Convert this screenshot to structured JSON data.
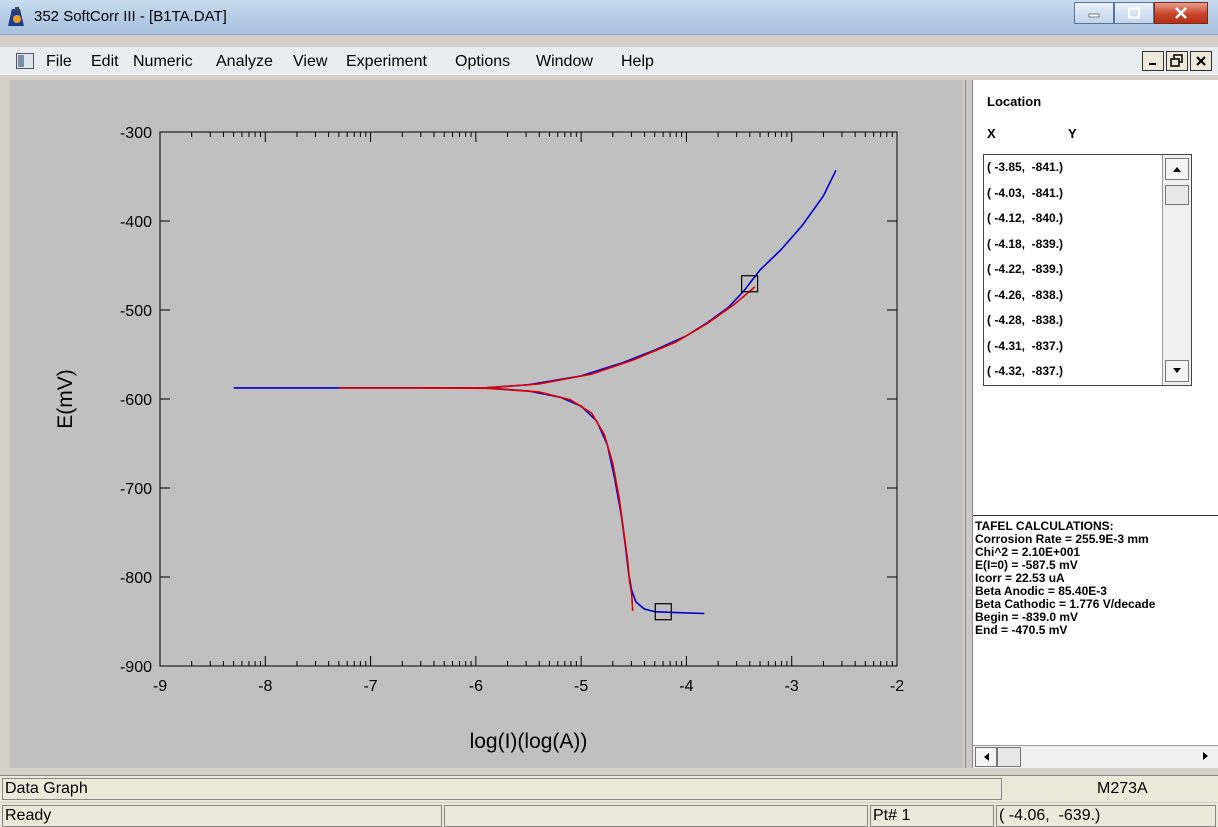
{
  "window": {
    "title": "352 SoftCorr III - [B1TA.DAT]"
  },
  "menu": {
    "items": [
      "File",
      "Edit",
      "Numeric",
      "Analyze",
      "View",
      "Experiment",
      "Options",
      "Window",
      "Help"
    ]
  },
  "location_panel": {
    "title": "Location",
    "x_header": "X",
    "y_header": "Y",
    "rows": [
      "( -3.85,  -841.)",
      "( -4.03,  -841.)",
      "( -4.12,  -840.)",
      "( -4.18,  -839.)",
      "( -4.22,  -839.)",
      "( -4.26,  -838.)",
      "( -4.28,  -838.)",
      "( -4.31,  -837.)",
      "( -4.32,  -837.)"
    ]
  },
  "tafel": {
    "lines": [
      "TAFEL CALCULATIONS:",
      "Corrosion Rate = 255.9E-3 mm",
      "Chi^2 =  2.10E+001",
      "E(I=0) = -587.5 mV",
      "Icorr = 22.53 uA",
      "Beta Anodic = 85.40E-3",
      "Beta Cathodic = 1.776 V/decade",
      "Begin = -839.0 mV",
      "End = -470.5 mV"
    ]
  },
  "status": {
    "graph_label": "Data Graph",
    "instrument": "M273A",
    "ready": "Ready",
    "point": "Pt# 1",
    "coords": "( -4.06,  -639.)"
  },
  "chart_data": {
    "type": "line",
    "xlabel": "log(I)(log(A))",
    "ylabel": "E(mV)",
    "xlim": [
      -9,
      -2
    ],
    "ylim": [
      -900,
      -300
    ],
    "x_ticks": [
      -9,
      -8,
      -7,
      -6,
      -5,
      -4,
      -3,
      -2
    ],
    "y_ticks": [
      -300,
      -400,
      -500,
      -600,
      -700,
      -800,
      -900
    ],
    "log_minor_ticks": true,
    "series": [
      {
        "color": "#0000cc",
        "points": [
          [
            -8.3,
            -587.5
          ],
          [
            -7.5,
            -587.5
          ],
          [
            -6.5,
            -587.5
          ],
          [
            -5.9,
            -587.3
          ],
          [
            -5.5,
            -584
          ],
          [
            -5.0,
            -574
          ],
          [
            -4.6,
            -559
          ],
          [
            -4.3,
            -545
          ],
          [
            -4.0,
            -529
          ],
          [
            -3.8,
            -514
          ],
          [
            -3.6,
            -497
          ],
          [
            -3.45,
            -478
          ],
          [
            -3.3,
            -455
          ],
          [
            -3.1,
            -432
          ],
          [
            -2.9,
            -405
          ],
          [
            -2.7,
            -372
          ],
          [
            -2.58,
            -343
          ]
        ]
      },
      {
        "color": "#0000cc",
        "points": [
          [
            -5.9,
            -587.5
          ],
          [
            -5.5,
            -591
          ],
          [
            -5.2,
            -598
          ],
          [
            -5.0,
            -608
          ],
          [
            -4.85,
            -625
          ],
          [
            -4.75,
            -652
          ],
          [
            -4.68,
            -690
          ],
          [
            -4.62,
            -730
          ],
          [
            -4.58,
            -765
          ],
          [
            -4.55,
            -795
          ],
          [
            -4.52,
            -815
          ],
          [
            -4.48,
            -828
          ],
          [
            -4.4,
            -836
          ],
          [
            -4.3,
            -839
          ],
          [
            -4.1,
            -840
          ],
          [
            -3.83,
            -841
          ]
        ]
      },
      {
        "color": "#dd0000",
        "points": [
          [
            -7.3,
            -587.5
          ],
          [
            -6.5,
            -587.5
          ],
          [
            -5.9,
            -587.5
          ],
          [
            -5.4,
            -583
          ],
          [
            -4.9,
            -572
          ],
          [
            -4.5,
            -556
          ],
          [
            -4.1,
            -536
          ],
          [
            -3.8,
            -515
          ],
          [
            -3.55,
            -494
          ],
          [
            -3.35,
            -474
          ]
        ]
      },
      {
        "color": "#dd0000",
        "points": [
          [
            -6.5,
            -587.5
          ],
          [
            -5.9,
            -588
          ],
          [
            -5.4,
            -592
          ],
          [
            -5.1,
            -601
          ],
          [
            -4.9,
            -616
          ],
          [
            -4.78,
            -640
          ],
          [
            -4.7,
            -672
          ],
          [
            -4.64,
            -710
          ],
          [
            -4.6,
            -745
          ],
          [
            -4.56,
            -780
          ],
          [
            -4.54,
            -805
          ],
          [
            -4.52,
            -820
          ],
          [
            -4.51,
            -838
          ]
        ]
      }
    ],
    "markers": [
      {
        "shape": "square",
        "x": -3.4,
        "y": -470.5
      },
      {
        "shape": "square",
        "x": -4.22,
        "y": -839.0
      }
    ]
  }
}
